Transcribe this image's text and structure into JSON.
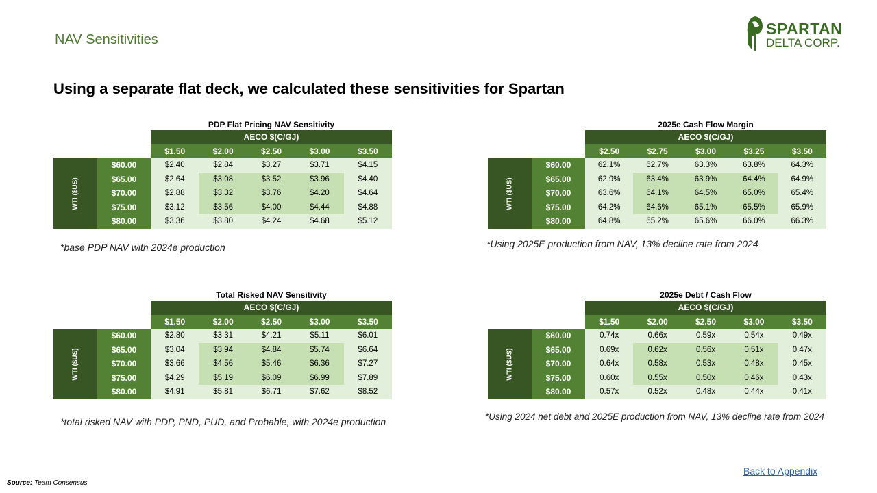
{
  "slide_title": "NAV Sensitivities",
  "logo": {
    "line1": "SPARTAN",
    "line2": "DELTA CORP.",
    "icon": "spartan-helmet-icon",
    "color": "#3a6b23"
  },
  "headline": "Using a separate flat deck, we calculated these sensitivities for Spartan",
  "tables": [
    {
      "title": "PDP Flat Pricing NAV Sensitivity",
      "aeco_label": "AECO $(C/GJ)",
      "wti_label": "WTI ($US)",
      "columns": [
        "$1.50",
        "$2.00",
        "$2.50",
        "$3.00",
        "$3.50"
      ],
      "rows": [
        "$60.00",
        "$65.00",
        "$70.00",
        "$75.00",
        "$80.00"
      ],
      "values": [
        [
          "$2.40",
          "$2.84",
          "$3.27",
          "$3.71",
          "$4.15"
        ],
        [
          "$2.64",
          "$3.08",
          "$3.52",
          "$3.96",
          "$4.40"
        ],
        [
          "$2.88",
          "$3.32",
          "$3.76",
          "$4.20",
          "$4.64"
        ],
        [
          "$3.12",
          "$3.56",
          "$4.00",
          "$4.44",
          "$4.88"
        ],
        [
          "$3.36",
          "$3.80",
          "$4.24",
          "$4.68",
          "$5.12"
        ]
      ],
      "footnote": "*base PDP NAV with 2024e production"
    },
    {
      "title": "2025e Cash Flow Margin",
      "aeco_label": "AECO $(C/GJ)",
      "wti_label": "WTI ($US)",
      "columns": [
        "$2.50",
        "$2.75",
        "$3.00",
        "$3.25",
        "$3.50"
      ],
      "rows": [
        "$60.00",
        "$65.00",
        "$70.00",
        "$75.00",
        "$80.00"
      ],
      "values": [
        [
          "62.1%",
          "62.7%",
          "63.3%",
          "63.8%",
          "64.3%"
        ],
        [
          "62.9%",
          "63.4%",
          "63.9%",
          "64.4%",
          "64.9%"
        ],
        [
          "63.6%",
          "64.1%",
          "64.5%",
          "65.0%",
          "65.4%"
        ],
        [
          "64.2%",
          "64.6%",
          "65.1%",
          "65.5%",
          "65.9%"
        ],
        [
          "64.8%",
          "65.2%",
          "65.6%",
          "66.0%",
          "66.3%"
        ]
      ],
      "footnote": "*Using 2025E production from NAV, 13% decline rate from 2024"
    },
    {
      "title": "Total Risked NAV Sensitivity",
      "aeco_label": "AECO $(C/GJ)",
      "wti_label": "WTI ($US)",
      "columns": [
        "$1.50",
        "$2.00",
        "$2.50",
        "$3.00",
        "$3.50"
      ],
      "rows": [
        "$60.00",
        "$65.00",
        "$70.00",
        "$75.00",
        "$80.00"
      ],
      "values": [
        [
          "$2.80",
          "$3.31",
          "$4.21",
          "$5.11",
          "$6.01"
        ],
        [
          "$3.04",
          "$3.94",
          "$4.84",
          "$5.74",
          "$6.64"
        ],
        [
          "$3.66",
          "$4.56",
          "$5.46",
          "$6.36",
          "$7.27"
        ],
        [
          "$4.29",
          "$5.19",
          "$6.09",
          "$6.99",
          "$7.89"
        ],
        [
          "$4.91",
          "$5.81",
          "$6.71",
          "$7.62",
          "$8.52"
        ]
      ],
      "footnote": "*total risked NAV with PDP, PND, PUD, and Probable, with 2024e production"
    },
    {
      "title": "2025e  Debt / Cash Flow",
      "aeco_label": "AECO $(C/GJ)",
      "wti_label": "WTI ($US)",
      "columns": [
        "$1.50",
        "$2.00",
        "$2.50",
        "$3.00",
        "$3.50"
      ],
      "rows": [
        "$60.00",
        "$65.00",
        "$70.00",
        "$75.00",
        "$80.00"
      ],
      "values": [
        [
          "0.74x",
          "0.66x",
          "0.59x",
          "0.54x",
          "0.49x"
        ],
        [
          "0.69x",
          "0.62x",
          "0.56x",
          "0.51x",
          "0.47x"
        ],
        [
          "0.64x",
          "0.58x",
          "0.53x",
          "0.48x",
          "0.45x"
        ],
        [
          "0.60x",
          "0.55x",
          "0.50x",
          "0.46x",
          "0.43x"
        ],
        [
          "0.57x",
          "0.52x",
          "0.48x",
          "0.44x",
          "0.41x"
        ]
      ],
      "footnote": "*Using 2024  net debt and 2025E production from NAV, 13% decline rate from 2024"
    }
  ],
  "back_link": "Back to Appendix",
  "source": {
    "label": "Source:",
    "text": "Team Consensus"
  },
  "colors": {
    "dark_green": "#375623",
    "mid_green": "#548235",
    "light_cell": "#e2efda",
    "highlight_cell": "#c6e0b4",
    "title_green": "#4a7a2e"
  }
}
